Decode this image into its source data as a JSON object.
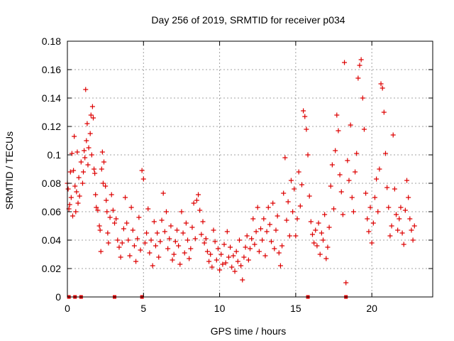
{
  "chart_data": {
    "type": "scatter",
    "title": "Day 256 of 2019, SRMTID for receiver p034",
    "xlabel": "GPS time / hours",
    "ylabel": "SRMTID / TECUs",
    "xlim": [
      0,
      24
    ],
    "ylim": [
      0,
      0.18
    ],
    "x_ticks": [
      0,
      5,
      10,
      15,
      20
    ],
    "x_tick_labels": [
      "0",
      "5",
      "10",
      "15",
      "20"
    ],
    "y_ticks": [
      0,
      0.02,
      0.04,
      0.06,
      0.08,
      0.1,
      0.12,
      0.14,
      0.16,
      0.18
    ],
    "y_tick_labels": [
      "0",
      "0.02",
      "0.04",
      "0.06",
      "0.08",
      "0.1",
      "0.12",
      "0.14",
      "0.16",
      "0.18"
    ],
    "grid": true,
    "marker": "+",
    "color": "#dd0000",
    "zero_markers_x": [
      0.1,
      0.5,
      0.9,
      3.1,
      4.9,
      15.8,
      18.3
    ],
    "points": [
      [
        0.0,
        0.08
      ],
      [
        0.05,
        0.076
      ],
      [
        0.1,
        0.062
      ],
      [
        0.15,
        0.065
      ],
      [
        0.2,
        0.088
      ],
      [
        0.25,
        0.07
      ],
      [
        0.3,
        0.101
      ],
      [
        0.35,
        0.057
      ],
      [
        0.4,
        0.089
      ],
      [
        0.45,
        0.113
      ],
      [
        0.5,
        0.078
      ],
      [
        0.55,
        0.06
      ],
      [
        0.6,
        0.074
      ],
      [
        0.65,
        0.102
      ],
      [
        0.7,
        0.066
      ],
      [
        0.75,
        0.084
      ],
      [
        0.8,
        0.071
      ],
      [
        0.9,
        0.095
      ],
      [
        1.0,
        0.08
      ],
      [
        1.05,
        0.088
      ],
      [
        1.1,
        0.103
      ],
      [
        1.15,
        0.098
      ],
      [
        1.2,
        0.146
      ],
      [
        1.25,
        0.11
      ],
      [
        1.3,
        0.122
      ],
      [
        1.35,
        0.093
      ],
      [
        1.4,
        0.105
      ],
      [
        1.5,
        0.115
      ],
      [
        1.55,
        0.128
      ],
      [
        1.6,
        0.1
      ],
      [
        1.65,
        0.134
      ],
      [
        1.7,
        0.126
      ],
      [
        1.75,
        0.09
      ],
      [
        1.8,
        0.087
      ],
      [
        1.85,
        0.072
      ],
      [
        1.9,
        0.063
      ],
      [
        2.0,
        0.061
      ],
      [
        2.1,
        0.05
      ],
      [
        2.15,
        0.047
      ],
      [
        2.2,
        0.032
      ],
      [
        2.25,
        0.09
      ],
      [
        2.3,
        0.102
      ],
      [
        2.35,
        0.08
      ],
      [
        2.4,
        0.095
      ],
      [
        2.5,
        0.078
      ],
      [
        2.55,
        0.068
      ],
      [
        2.6,
        0.06
      ],
      [
        2.65,
        0.045
      ],
      [
        2.7,
        0.038
      ],
      [
        2.8,
        0.056
      ],
      [
        2.9,
        0.072
      ],
      [
        3.0,
        0.061
      ],
      [
        3.1,
        0.052
      ],
      [
        3.2,
        0.055
      ],
      [
        3.3,
        0.04
      ],
      [
        3.4,
        0.035
      ],
      [
        3.5,
        0.028
      ],
      [
        3.6,
        0.038
      ],
      [
        3.7,
        0.048
      ],
      [
        3.8,
        0.07
      ],
      [
        3.9,
        0.052
      ],
      [
        4.0,
        0.04
      ],
      [
        4.1,
        0.029
      ],
      [
        4.2,
        0.063
      ],
      [
        4.3,
        0.047
      ],
      [
        4.4,
        0.036
      ],
      [
        4.5,
        0.025
      ],
      [
        4.6,
        0.041
      ],
      [
        4.7,
        0.056
      ],
      [
        4.8,
        0.033
      ],
      [
        4.9,
        0.089
      ],
      [
        5.0,
        0.083
      ],
      [
        5.1,
        0.038
      ],
      [
        5.2,
        0.045
      ],
      [
        5.3,
        0.062
      ],
      [
        5.4,
        0.031
      ],
      [
        5.5,
        0.04
      ],
      [
        5.6,
        0.022
      ],
      [
        5.7,
        0.053
      ],
      [
        5.8,
        0.036
      ],
      [
        5.9,
        0.045
      ],
      [
        6.0,
        0.028
      ],
      [
        6.1,
        0.039
      ],
      [
        6.2,
        0.054
      ],
      [
        6.3,
        0.073
      ],
      [
        6.4,
        0.046
      ],
      [
        6.5,
        0.06
      ],
      [
        6.6,
        0.034
      ],
      [
        6.7,
        0.041
      ],
      [
        6.8,
        0.05
      ],
      [
        6.9,
        0.026
      ],
      [
        7.0,
        0.03
      ],
      [
        7.1,
        0.039
      ],
      [
        7.2,
        0.047
      ],
      [
        7.3,
        0.036
      ],
      [
        7.4,
        0.023
      ],
      [
        7.5,
        0.06
      ],
      [
        7.6,
        0.045
      ],
      [
        7.7,
        0.031
      ],
      [
        7.8,
        0.052
      ],
      [
        7.9,
        0.04
      ],
      [
        8.0,
        0.027
      ],
      [
        8.1,
        0.034
      ],
      [
        8.2,
        0.049
      ],
      [
        8.3,
        0.066
      ],
      [
        8.4,
        0.041
      ],
      [
        8.5,
        0.068
      ],
      [
        8.6,
        0.072
      ],
      [
        8.7,
        0.061
      ],
      [
        8.8,
        0.044
      ],
      [
        8.9,
        0.053
      ],
      [
        9.0,
        0.038
      ],
      [
        9.1,
        0.041
      ],
      [
        9.2,
        0.032
      ],
      [
        9.3,
        0.025
      ],
      [
        9.4,
        0.03
      ],
      [
        9.5,
        0.021
      ],
      [
        9.6,
        0.047
      ],
      [
        9.7,
        0.039
      ],
      [
        9.8,
        0.026
      ],
      [
        9.9,
        0.034
      ],
      [
        10.0,
        0.019
      ],
      [
        10.1,
        0.03
      ],
      [
        10.2,
        0.023
      ],
      [
        10.3,
        0.037
      ],
      [
        10.4,
        0.024
      ],
      [
        10.5,
        0.046
      ],
      [
        10.6,
        0.028
      ],
      [
        10.7,
        0.035
      ],
      [
        10.8,
        0.021
      ],
      [
        10.9,
        0.029
      ],
      [
        11.0,
        0.018
      ],
      [
        11.1,
        0.032
      ],
      [
        11.2,
        0.025
      ],
      [
        11.3,
        0.04
      ],
      [
        11.4,
        0.022
      ],
      [
        11.5,
        0.012
      ],
      [
        11.6,
        0.028
      ],
      [
        11.7,
        0.035
      ],
      [
        11.8,
        0.043
      ],
      [
        11.9,
        0.026
      ],
      [
        12.0,
        0.034
      ],
      [
        12.1,
        0.041
      ],
      [
        12.2,
        0.055
      ],
      [
        12.3,
        0.037
      ],
      [
        12.4,
        0.046
      ],
      [
        12.5,
        0.063
      ],
      [
        12.6,
        0.032
      ],
      [
        12.7,
        0.048
      ],
      [
        12.8,
        0.04
      ],
      [
        12.9,
        0.055
      ],
      [
        13.0,
        0.029
      ],
      [
        13.1,
        0.046
      ],
      [
        13.2,
        0.063
      ],
      [
        13.3,
        0.051
      ],
      [
        13.4,
        0.039
      ],
      [
        13.5,
        0.066
      ],
      [
        13.6,
        0.034
      ],
      [
        13.7,
        0.047
      ],
      [
        13.8,
        0.057
      ],
      [
        13.9,
        0.031
      ],
      [
        14.0,
        0.022
      ],
      [
        14.1,
        0.036
      ],
      [
        14.2,
        0.073
      ],
      [
        14.3,
        0.098
      ],
      [
        14.4,
        0.054
      ],
      [
        14.5,
        0.067
      ],
      [
        14.6,
        0.043
      ],
      [
        14.7,
        0.082
      ],
      [
        14.8,
        0.06
      ],
      [
        14.9,
        0.076
      ],
      [
        15.0,
        0.043
      ],
      [
        15.1,
        0.055
      ],
      [
        15.2,
        0.088
      ],
      [
        15.3,
        0.064
      ],
      [
        15.4,
        0.079
      ],
      [
        15.5,
        0.131
      ],
      [
        15.6,
        0.127
      ],
      [
        15.7,
        0.118
      ],
      [
        15.8,
        0.1
      ],
      [
        15.9,
        0.071
      ],
      [
        16.0,
        0.053
      ],
      [
        16.1,
        0.044
      ],
      [
        16.2,
        0.038
      ],
      [
        16.3,
        0.047
      ],
      [
        16.4,
        0.036
      ],
      [
        16.5,
        0.052
      ],
      [
        16.6,
        0.03
      ],
      [
        16.7,
        0.045
      ],
      [
        16.8,
        0.04
      ],
      [
        16.9,
        0.058
      ],
      [
        17.0,
        0.027
      ],
      [
        17.1,
        0.035
      ],
      [
        17.2,
        0.049
      ],
      [
        17.3,
        0.078
      ],
      [
        17.4,
        0.093
      ],
      [
        17.5,
        0.062
      ],
      [
        17.6,
        0.103
      ],
      [
        17.7,
        0.128
      ],
      [
        17.8,
        0.117
      ],
      [
        17.9,
        0.086
      ],
      [
        18.0,
        0.074
      ],
      [
        18.1,
        0.058
      ],
      [
        18.2,
        0.165
      ],
      [
        18.3,
        0.01
      ],
      [
        18.4,
        0.096
      ],
      [
        18.5,
        0.082
      ],
      [
        18.6,
        0.121
      ],
      [
        18.7,
        0.07
      ],
      [
        18.8,
        0.06
      ],
      [
        18.9,
        0.088
      ],
      [
        19.0,
        0.101
      ],
      [
        19.1,
        0.154
      ],
      [
        19.2,
        0.163
      ],
      [
        19.3,
        0.167
      ],
      [
        19.4,
        0.14
      ],
      [
        19.5,
        0.118
      ],
      [
        19.6,
        0.073
      ],
      [
        19.7,
        0.055
      ],
      [
        19.8,
        0.046
      ],
      [
        19.9,
        0.063
      ],
      [
        20.0,
        0.038
      ],
      [
        20.1,
        0.052
      ],
      [
        20.2,
        0.07
      ],
      [
        20.3,
        0.083
      ],
      [
        20.4,
        0.06
      ],
      [
        20.5,
        0.09
      ],
      [
        20.6,
        0.15
      ],
      [
        20.7,
        0.147
      ],
      [
        20.8,
        0.13
      ],
      [
        20.9,
        0.101
      ],
      [
        21.0,
        0.077
      ],
      [
        21.1,
        0.063
      ],
      [
        21.2,
        0.043
      ],
      [
        21.3,
        0.05
      ],
      [
        21.4,
        0.114
      ],
      [
        21.5,
        0.076
      ],
      [
        21.6,
        0.058
      ],
      [
        21.7,
        0.047
      ],
      [
        21.8,
        0.055
      ],
      [
        21.9,
        0.063
      ],
      [
        22.0,
        0.045
      ],
      [
        22.1,
        0.037
      ],
      [
        22.2,
        0.061
      ],
      [
        22.3,
        0.082
      ],
      [
        22.4,
        0.07
      ],
      [
        22.5,
        0.055
      ],
      [
        22.6,
        0.047
      ],
      [
        22.7,
        0.04
      ],
      [
        22.8,
        0.05
      ]
    ]
  }
}
